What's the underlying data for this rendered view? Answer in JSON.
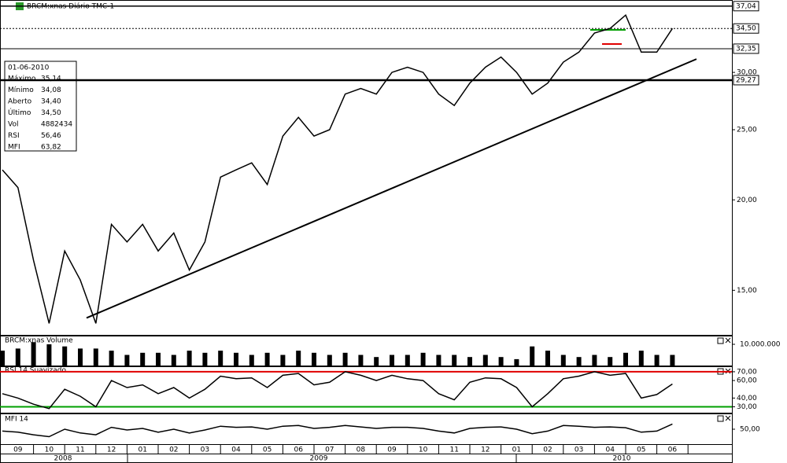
{
  "chart_data": {
    "type": "line",
    "title": "BRCM:xnas Diário TMC-1",
    "categories": [
      null,
      "09",
      null,
      "10",
      null,
      "11",
      null,
      "12",
      null,
      "01",
      null,
      "02",
      null,
      "03",
      null,
      "04",
      null,
      "05",
      null,
      "06",
      null,
      "07",
      null,
      "08",
      null,
      "09",
      null,
      "10",
      null,
      "11",
      null,
      "12",
      null,
      "01",
      null,
      "02",
      null,
      "03",
      null,
      "04",
      null,
      "05",
      null,
      "06"
    ],
    "year_labels": [
      "2008",
      "2009",
      "2010"
    ],
    "series": [
      {
        "name": "BRCM:xnas",
        "color": "#000000",
        "values": [
          22.0,
          20.8,
          16.5,
          13.5,
          17,
          15.5,
          13.5,
          18.5,
          17.5,
          18.5,
          17,
          18,
          16,
          17.5,
          21.5,
          22,
          22.5,
          21,
          24.5,
          26,
          24.5,
          25,
          28,
          28.5,
          28,
          30,
          30.5,
          30,
          28,
          27,
          29,
          30.5,
          31.5,
          30,
          28,
          29,
          31,
          32,
          34,
          34.5,
          36,
          32,
          32,
          34.5
        ]
      }
    ],
    "log_scale": true,
    "ylim": [
      13.05,
      37.3
    ],
    "yticks": [
      {
        "value": 15,
        "label": "15,00"
      },
      {
        "value": 20,
        "label": "20,00"
      },
      {
        "value": 25,
        "label": "25,00"
      },
      {
        "value": 30,
        "label": "30,00"
      }
    ],
    "levels": [
      {
        "value": 37.04,
        "label": "37,04"
      },
      {
        "value": 34.5,
        "label": "34,50"
      },
      {
        "value": 32.35,
        "label": "32,35"
      },
      {
        "value": 29.27,
        "label": "29,27"
      }
    ],
    "trendline": {
      "values": [
        13.74,
        31.3
      ]
    },
    "info_box": {
      "date": "01-06-2010",
      "rows": [
        [
          "Máximo",
          "35,14"
        ],
        [
          "Mínimo",
          "34,08"
        ],
        [
          "Aberto",
          "34,40"
        ],
        [
          "Último",
          "34,50"
        ],
        [
          "Vol",
          "4882434"
        ],
        [
          "RSI",
          "56,46"
        ],
        [
          "MFI",
          "63,82"
        ]
      ]
    },
    "volume": {
      "title": "BRCM:xnas Volume",
      "color": "#000000",
      "values": [
        7000000,
        8000000,
        11000000,
        10000000,
        9000000,
        8000000,
        8000000,
        7000000,
        5000000,
        6000000,
        6000000,
        5000000,
        7000000,
        6000000,
        7000000,
        6000000,
        5000000,
        6000000,
        5000000,
        7000000,
        6000000,
        5000000,
        6000000,
        5000000,
        4000000,
        5000000,
        5000000,
        6000000,
        5000000,
        5000000,
        4000000,
        5000000,
        4000000,
        3000000,
        9000000,
        7000000,
        5000000,
        4000000,
        5000000,
        4000000,
        6000000,
        7000000,
        5000000,
        5000000
      ],
      "ylim": [
        0,
        13700000
      ],
      "yticks": [
        {
          "value": 10000000,
          "label": "10.000.000"
        }
      ]
    },
    "rsi": {
      "title": "RSI 14 Suavizado",
      "color": "#000000",
      "values": [
        45,
        40,
        33,
        28,
        50,
        42,
        30,
        60,
        52,
        55,
        45,
        52,
        40,
        50,
        65,
        62,
        63,
        52,
        66,
        68,
        55,
        58,
        70,
        66,
        60,
        66,
        62,
        60,
        45,
        38,
        58,
        63,
        62,
        52,
        30,
        45,
        62,
        65,
        70,
        66,
        68,
        40,
        44,
        56
      ],
      "ylim": [
        24.2,
        75.3
      ],
      "yticks": [
        {
          "value": 70,
          "label": "70,00"
        },
        {
          "value": 60,
          "label": "60,00"
        },
        {
          "value": 40,
          "label": "40,00"
        },
        {
          "value": 30,
          "label": "30,00"
        }
      ],
      "bands": [
        {
          "value": 70,
          "color": "#e00000"
        },
        {
          "value": 30,
          "color": "#00a000"
        }
      ]
    },
    "mfi": {
      "title": "MFI 14",
      "color": "#000000",
      "values": [
        45,
        42,
        35,
        30,
        50,
        40,
        35,
        55,
        48,
        52,
        42,
        50,
        40,
        48,
        58,
        55,
        56,
        50,
        58,
        60,
        52,
        55,
        60,
        56,
        52,
        55,
        55,
        52,
        45,
        40,
        52,
        55,
        56,
        50,
        38,
        45,
        60,
        58,
        55,
        56,
        54,
        42,
        45,
        64
      ],
      "ylim": [
        10,
        90
      ],
      "yticks": [
        {
          "value": 50,
          "label": "50,00"
        }
      ]
    }
  }
}
